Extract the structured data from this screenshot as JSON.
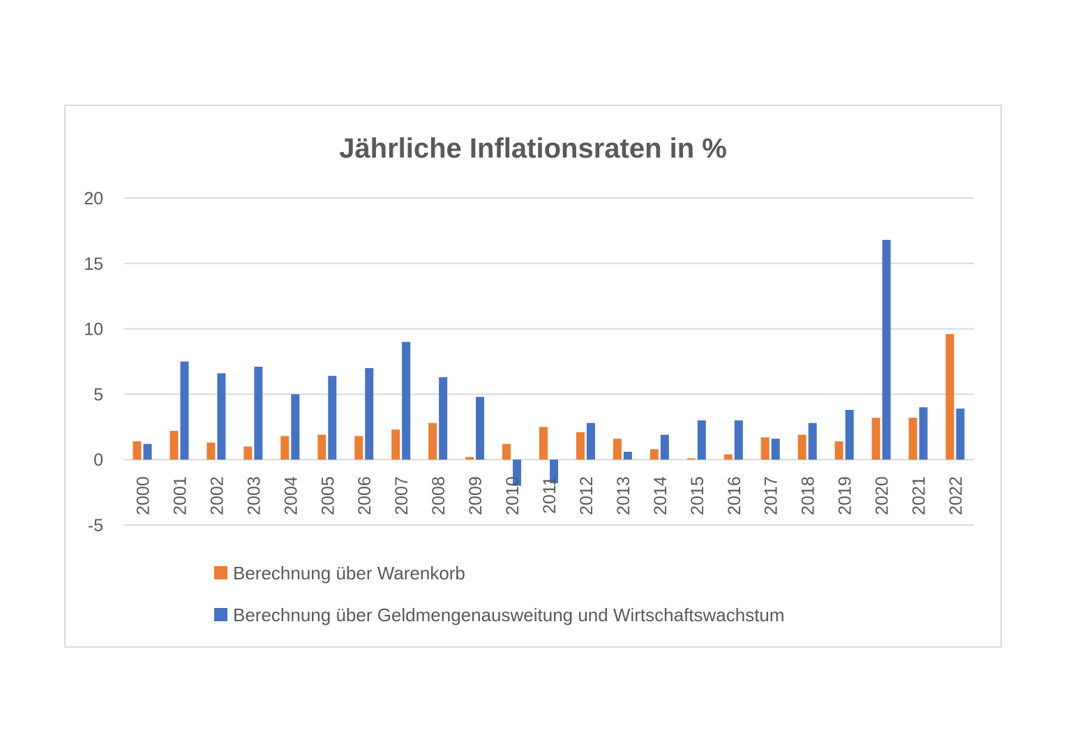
{
  "chart_data": {
    "type": "bar",
    "title": "Jährliche Inflationsraten in %",
    "xlabel": "",
    "ylabel": "",
    "ylim": [
      -5,
      20
    ],
    "yticks": [
      -5,
      0,
      5,
      10,
      15,
      20
    ],
    "grid": true,
    "legend_position": "bottom-left",
    "categories": [
      "2000",
      "2001",
      "2002",
      "2003",
      "2004",
      "2005",
      "2006",
      "2007",
      "2008",
      "2009",
      "2010",
      "2011",
      "2012",
      "2013",
      "2014",
      "2015",
      "2016",
      "2017",
      "2018",
      "2019",
      "2020",
      "2021",
      "2022"
    ],
    "series": [
      {
        "name": "Berechnung über Warenkorb",
        "color": "#ED7D31",
        "values": [
          1.4,
          2.2,
          1.3,
          1.0,
          1.8,
          1.9,
          1.8,
          2.3,
          2.8,
          0.2,
          1.2,
          2.5,
          2.1,
          1.6,
          0.8,
          0.1,
          0.4,
          1.7,
          1.9,
          1.4,
          3.2,
          3.2,
          9.6
        ]
      },
      {
        "name": "Berechnung über Geldmengenausweitung und Wirtschaftswachstum",
        "color": "#4472C4",
        "values": [
          1.2,
          7.5,
          6.6,
          7.1,
          5.0,
          6.4,
          7.0,
          9.0,
          6.3,
          4.8,
          -2.0,
          -1.8,
          2.8,
          0.6,
          1.9,
          3.0,
          3.0,
          1.6,
          2.8,
          3.8,
          16.8,
          4.0,
          3.9
        ]
      }
    ]
  }
}
